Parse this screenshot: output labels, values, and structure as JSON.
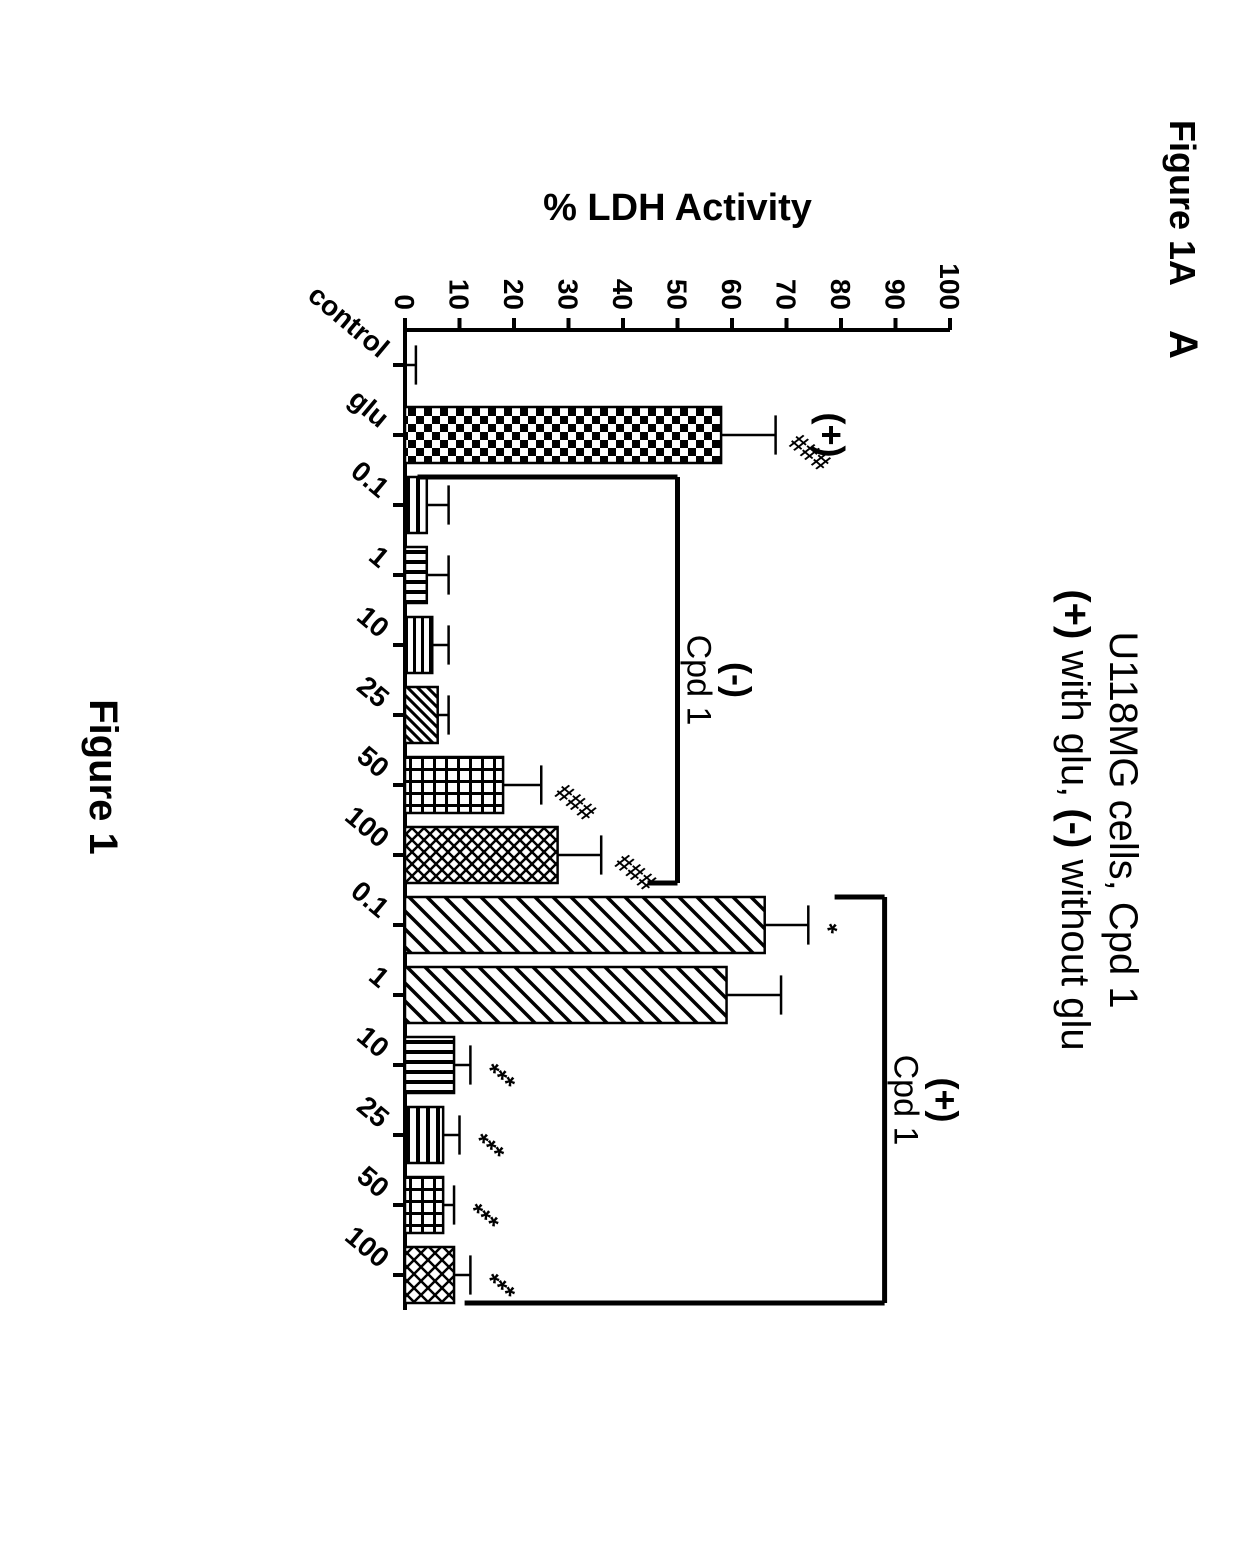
{
  "figure_label_top": "Figure 1A",
  "panel_letter": "A",
  "figure_label_bottom": "Figure 1",
  "title_line1": "U118MG cells, Cpd 1",
  "title_line2_a": "(+)",
  "title_line2_b": " with glu, ",
  "title_line2_c": "(-)",
  "title_line2_d": " without glu",
  "y_axis_label": "% LDH Activity",
  "group_minus_label": "(-)",
  "group_minus_sub": "Cpd 1",
  "group_plus_label": "(+)",
  "group_plus_sub": "Cpd 1",
  "plus_left_label": "(+)",
  "chart": {
    "type": "bar",
    "background_color": "#ffffff",
    "axis_color": "#000000",
    "bar_stroke": "#000000",
    "bar_stroke_width": 2.5,
    "error_stroke": "#000000",
    "error_stroke_width": 2.5,
    "ylim": [
      0,
      100
    ],
    "ytick_step": 10,
    "yticks": [
      0,
      10,
      20,
      30,
      40,
      50,
      60,
      70,
      80,
      90,
      100
    ],
    "axis_font_size": 28,
    "axis_font_weight": "bold",
    "title_font_size": 40,
    "label_font_size": 32,
    "categories": [
      "control",
      "glu",
      "0.1",
      "1",
      "10",
      "25",
      "50",
      "100",
      "0.1",
      "1",
      "10",
      "25",
      "50",
      "100"
    ],
    "values": [
      0,
      58,
      4,
      4,
      5,
      6,
      18,
      28,
      66,
      59,
      9,
      7,
      7,
      9
    ],
    "errors": [
      2,
      10,
      4,
      4,
      3,
      2,
      7,
      8,
      8,
      10,
      3,
      3,
      2,
      3
    ],
    "sig_labels": [
      "",
      "###",
      "",
      "",
      "",
      "",
      "###",
      "###",
      "*",
      "",
      "***",
      "***",
      "***",
      "***"
    ],
    "patterns": [
      "none",
      "checker",
      "hstripe",
      "vstripe",
      "hstripe2",
      "diag-dense",
      "grid",
      "crosshatch",
      "diag-sparse",
      "diag-sparse2",
      "vstripe2",
      "hstripe3",
      "grid2",
      "cross-diag"
    ],
    "bar_width_rel": 0.8,
    "group_minus_start_index": 2,
    "group_minus_end_index": 7,
    "group_plus_start_index": 8,
    "group_plus_end_index": 13
  }
}
